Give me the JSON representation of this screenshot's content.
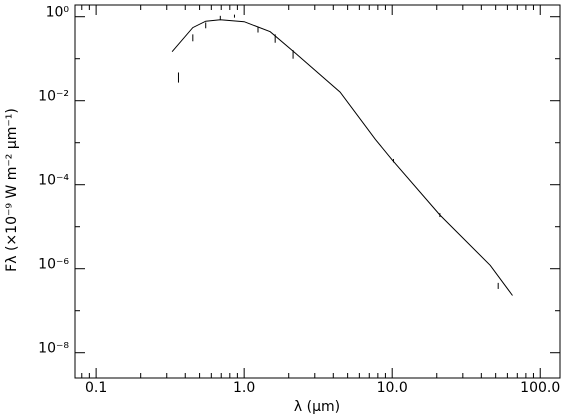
{
  "chart_data": {
    "type": "line",
    "xlabel": "λ (µm)",
    "ylabel": "Fλ (×10⁻⁹ W m⁻² µm⁻¹)",
    "xscale": "log",
    "yscale": "log",
    "xlim": [
      0.072,
      136
    ],
    "ylim": [
      2.5e-09,
      1.9
    ],
    "xticks": [
      0.1,
      {
        "value": 1,
        "label": "1.0"
      },
      {
        "value": 10,
        "label": "10.0"
      },
      {
        "value": 100,
        "label": "100.0"
      }
    ],
    "yticks": [
      {
        "value": 1,
        "label": "10⁰"
      },
      {
        "value": 0.01,
        "label": "10⁻²"
      },
      {
        "value": 0.0001,
        "label": "10⁻⁴"
      },
      {
        "value": 1e-06,
        "label": "10⁻⁶"
      },
      {
        "value": 1e-08,
        "label": "10⁻⁸"
      }
    ],
    "color": "#000000",
    "model": {
      "x": [
        0.326,
        0.45,
        0.55,
        0.69,
        1.0,
        1.5,
        2.2,
        4.45,
        7.7,
        10,
        21,
        46,
        65
      ],
      "values": [
        0.147,
        0.55,
        0.78,
        0.85,
        0.76,
        0.44,
        0.14,
        0.016,
        0.0012,
        0.00039,
        1.9e-05,
        1.2e-06,
        2.3e-07
      ]
    },
    "observations": {
      "x": [
        0.36,
        0.45,
        0.55,
        0.69,
        0.86,
        1.24,
        1.62,
        2.14,
        10.2,
        21,
        52
      ],
      "low": [
        0.027,
        0.26,
        0.53,
        0.85,
        0.95,
        0.42,
        0.24,
        0.1,
        0.00034,
        1.7e-05,
        3.3e-07
      ],
      "high": [
        0.047,
        0.38,
        0.73,
        1.05,
        1.12,
        0.58,
        0.38,
        0.16,
        0.00041,
        2.1e-05,
        4.6e-07
      ]
    }
  }
}
